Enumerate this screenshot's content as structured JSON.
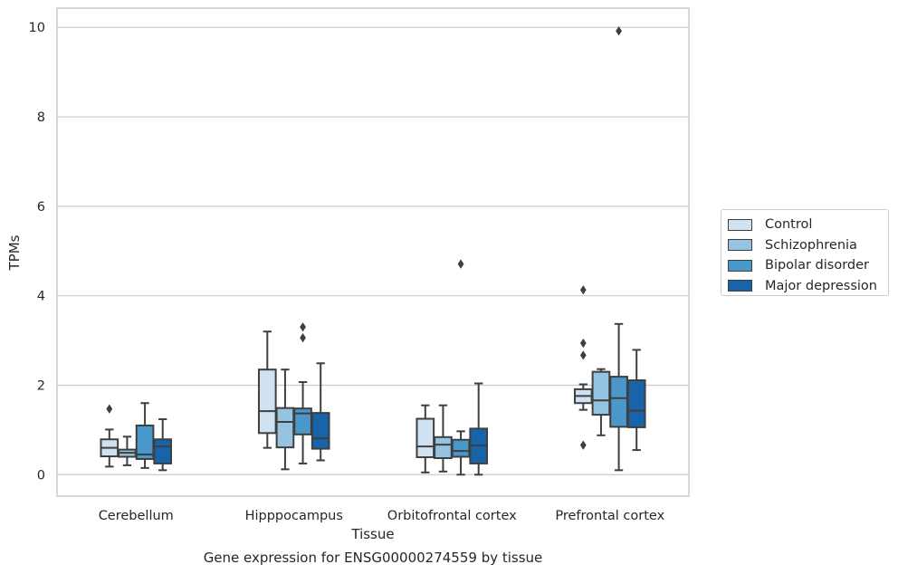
{
  "chart_data": {
    "type": "box",
    "caption": "Gene expression for ENSG00000274559 by tissue",
    "xlabel": "Tissue",
    "ylabel": "TPMs",
    "ylim": [
      -0.48,
      10.43
    ],
    "yticks": [
      "0",
      "2",
      "4",
      "6",
      "8",
      "10"
    ],
    "categories": [
      "Cerebellum",
      "Hipppocampus",
      "Orbitofrontal cortex",
      "Prefrontal cortex"
    ],
    "grid": "horizontal",
    "legend_position": "right",
    "series": [
      {
        "name": "Control",
        "color": "#d0e1f2",
        "boxes": [
          {
            "min": 0.18,
            "q1": 0.41,
            "median": 0.6,
            "q3": 0.79,
            "max": 1.01,
            "outliers": [
              1.47
            ]
          },
          {
            "min": 0.6,
            "q1": 0.93,
            "median": 1.42,
            "q3": 2.35,
            "max": 3.2,
            "outliers": []
          },
          {
            "min": 0.05,
            "q1": 0.39,
            "median": 0.63,
            "q3": 1.25,
            "max": 1.55,
            "outliers": []
          },
          {
            "min": 1.45,
            "q1": 1.6,
            "median": 1.76,
            "q3": 1.91,
            "max": 2.02,
            "outliers": [
              4.13,
              2.94,
              2.67,
              0.66
            ]
          }
        ]
      },
      {
        "name": "Schizophrenia",
        "color": "#94c4df",
        "boxes": [
          {
            "min": 0.21,
            "q1": 0.4,
            "median": 0.49,
            "q3": 0.56,
            "max": 0.85,
            "outliers": []
          },
          {
            "min": 0.12,
            "q1": 0.61,
            "median": 1.18,
            "q3": 1.49,
            "max": 2.35,
            "outliers": []
          },
          {
            "min": 0.07,
            "q1": 0.37,
            "median": 0.67,
            "q3": 0.84,
            "max": 1.55,
            "outliers": []
          },
          {
            "min": 0.88,
            "q1": 1.34,
            "median": 1.66,
            "q3": 2.3,
            "max": 2.36,
            "outliers": []
          }
        ]
      },
      {
        "name": "Bipolar disorder",
        "color": "#4a98c9",
        "boxes": [
          {
            "min": 0.15,
            "q1": 0.35,
            "median": 0.45,
            "q3": 1.1,
            "max": 1.6,
            "outliers": []
          },
          {
            "min": 0.25,
            "q1": 0.9,
            "median": 1.37,
            "q3": 1.48,
            "max": 2.07,
            "outliers": [
              3.3,
              3.06
            ]
          },
          {
            "min": 0.0,
            "q1": 0.4,
            "median": 0.53,
            "q3": 0.78,
            "max": 0.97,
            "outliers": [
              4.71
            ]
          },
          {
            "min": 0.1,
            "q1": 1.07,
            "median": 1.71,
            "q3": 2.19,
            "max": 3.37,
            "outliers": [
              9.92
            ]
          }
        ]
      },
      {
        "name": "Major depression",
        "color": "#1764ab",
        "boxes": [
          {
            "min": 0.1,
            "q1": 0.25,
            "median": 0.63,
            "q3": 0.79,
            "max": 1.24,
            "outliers": []
          },
          {
            "min": 0.32,
            "q1": 0.58,
            "median": 0.81,
            "q3": 1.38,
            "max": 2.49,
            "outliers": []
          },
          {
            "min": 0.0,
            "q1": 0.25,
            "median": 0.65,
            "q3": 1.03,
            "max": 2.04,
            "outliers": []
          },
          {
            "min": 0.55,
            "q1": 1.06,
            "median": 1.43,
            "q3": 2.11,
            "max": 2.79,
            "outliers": []
          }
        ]
      }
    ]
  }
}
